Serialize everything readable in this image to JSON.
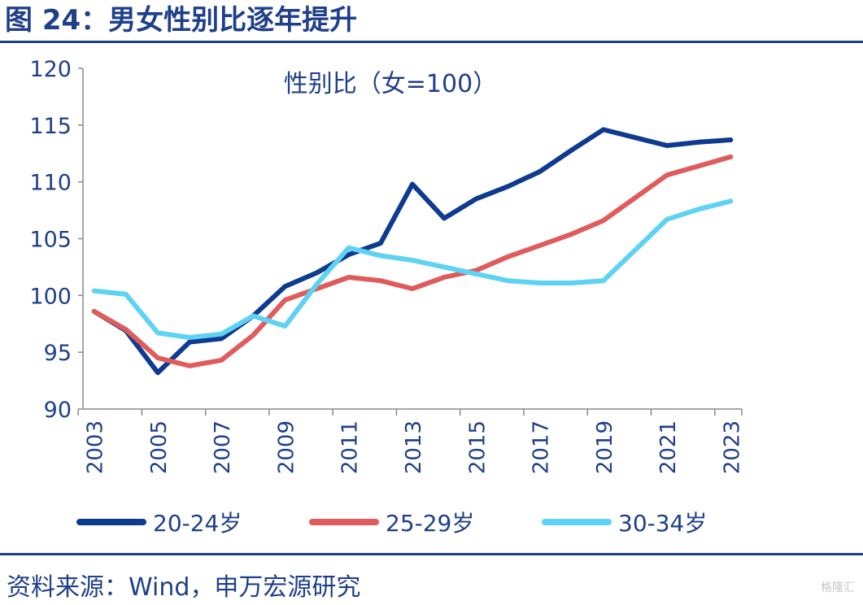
{
  "figure": {
    "title": "图 24：男女性别比逐年提升",
    "source": "资料来源：Wind，申万宏源研究",
    "watermark": "格隆汇"
  },
  "chart_data": {
    "type": "line",
    "title": "性别比（女=100）",
    "xlabel": "",
    "ylabel": "",
    "x": [
      2003,
      2004,
      2005,
      2006,
      2007,
      2008,
      2009,
      2010,
      2011,
      2012,
      2013,
      2014,
      2015,
      2016,
      2017,
      2018,
      2019,
      2020,
      2021,
      2022,
      2023
    ],
    "x_tick_labels": [
      "2003",
      "2005",
      "2007",
      "2009",
      "2011",
      "2013",
      "2015",
      "2017",
      "2019",
      "2021",
      "2023"
    ],
    "y_tick_labels": [
      "90",
      "95",
      "100",
      "105",
      "110",
      "115",
      "120"
    ],
    "ylim": [
      90,
      120
    ],
    "grid": false,
    "legend_position": "bottom",
    "series": [
      {
        "name": "20-24岁",
        "color": "#0e3b8f",
        "values": [
          98.6,
          96.9,
          93.2,
          95.9,
          96.2,
          98.2,
          100.8,
          102.0,
          103.6,
          104.6,
          109.8,
          106.8,
          108.5,
          109.6,
          110.9,
          112.8,
          114.6,
          113.9,
          113.2,
          113.5,
          113.7
        ]
      },
      {
        "name": "25-29岁",
        "color": "#e05b5b",
        "values": [
          98.6,
          97.0,
          94.5,
          93.8,
          94.3,
          96.5,
          99.6,
          100.6,
          101.6,
          101.3,
          100.6,
          101.6,
          102.2,
          103.4,
          104.4,
          105.4,
          106.6,
          108.6,
          110.6,
          111.4,
          112.2
        ]
      },
      {
        "name": "30-34岁",
        "color": "#5dd2f3",
        "values": [
          100.4,
          100.1,
          96.7,
          96.3,
          96.6,
          98.2,
          97.3,
          101.0,
          104.2,
          103.5,
          103.1,
          102.5,
          101.9,
          101.3,
          101.1,
          101.1,
          101.3,
          104.0,
          106.7,
          107.6,
          108.3
        ]
      }
    ]
  }
}
